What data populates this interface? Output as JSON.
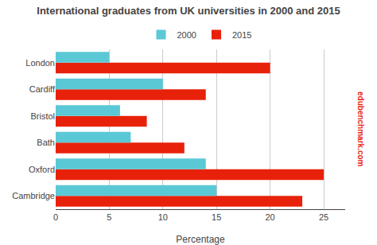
{
  "chart_data": {
    "type": "bar",
    "orientation": "horizontal",
    "title": "International graduates from UK universities in 2000 and 2015",
    "categories": [
      "Cambridge",
      "Oxford",
      "Bath",
      "Bristol",
      "Cardiff",
      "London"
    ],
    "series": [
      {
        "name": "2000",
        "color": "#5BC8D5",
        "values": [
          15,
          14,
          7,
          6,
          10,
          5
        ]
      },
      {
        "name": "2015",
        "color": "#E8220A",
        "values": [
          23,
          25,
          12,
          8.5,
          14,
          20
        ]
      }
    ],
    "x_label": "Percentage",
    "xlim": [
      0,
      27
    ],
    "xticks": [
      0,
      5,
      10,
      15,
      20,
      25
    ],
    "grid": true,
    "legend": "top",
    "annotations": [
      {
        "text": "edubenchmark.com",
        "color": "#E8220A"
      }
    ]
  }
}
